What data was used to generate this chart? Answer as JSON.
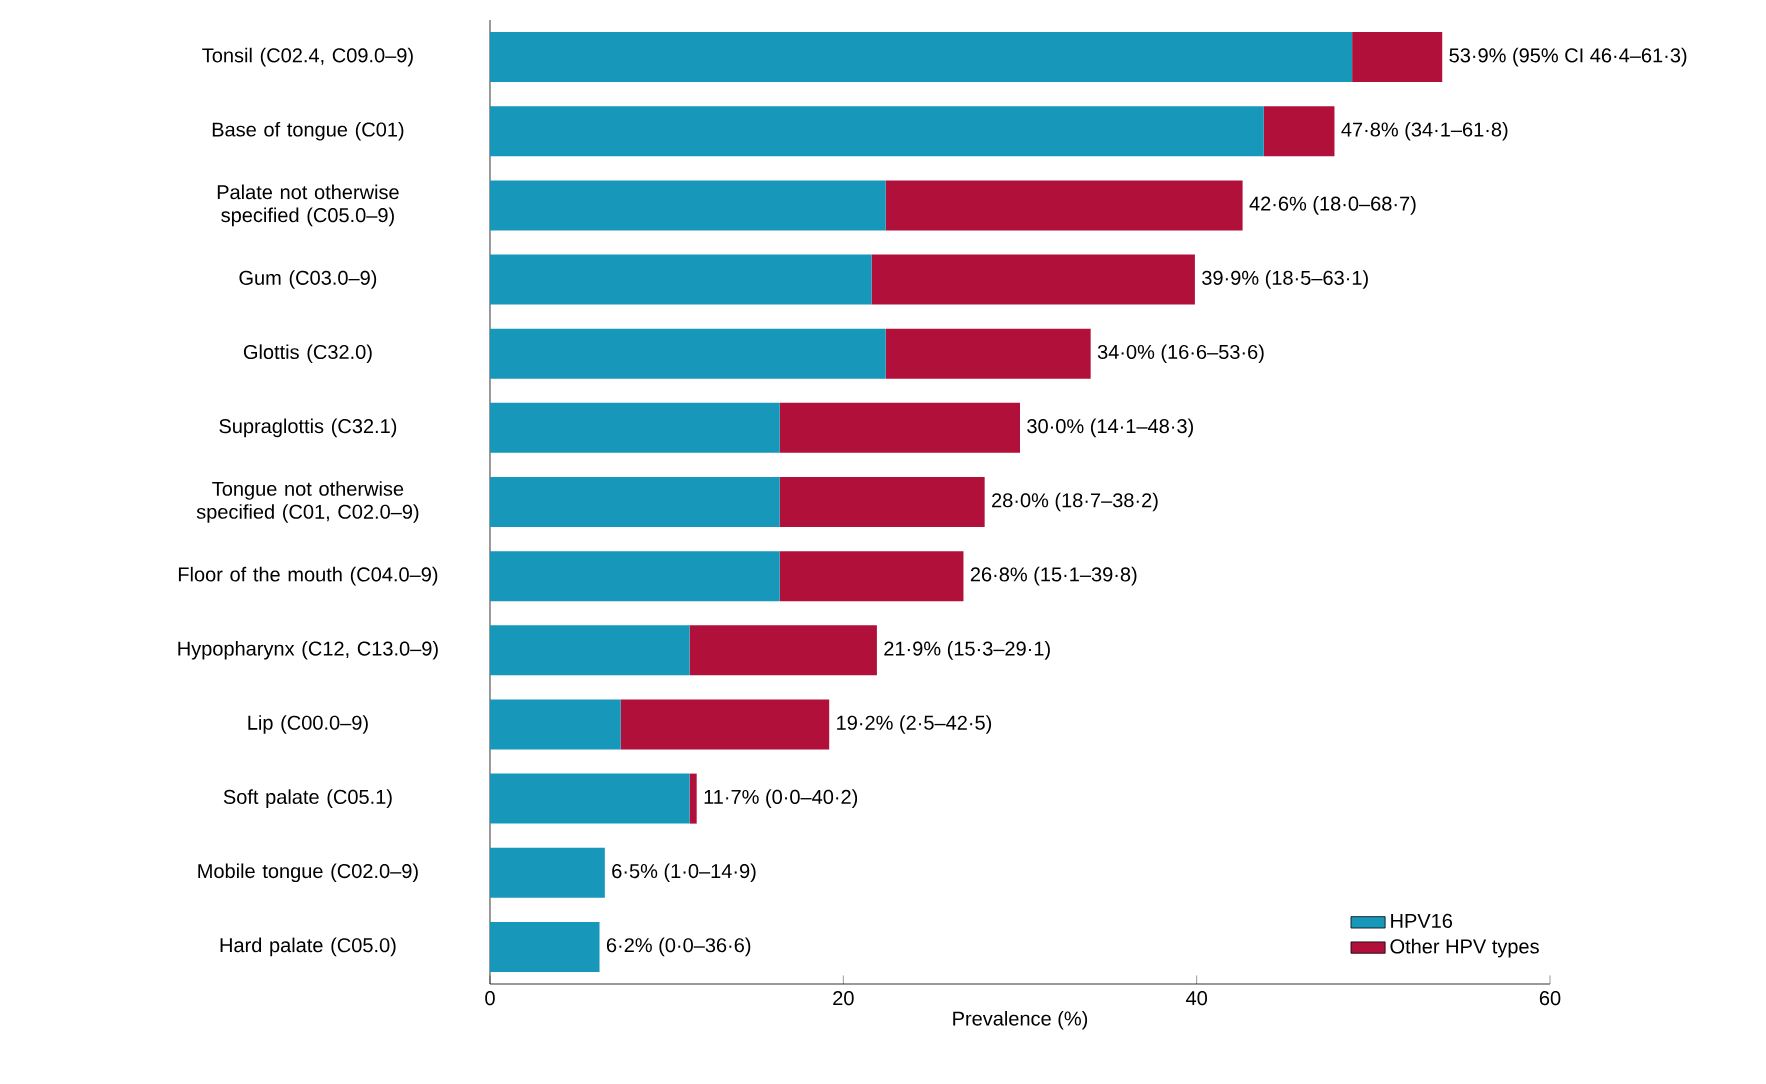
{
  "chart_data": {
    "type": "bar",
    "orientation": "horizontal",
    "stacked": true,
    "xlabel": "Prevalence (%)",
    "categories": [
      "Tonsil (C02.4, C09.0–9)",
      "Base of tongue (C01)",
      "Palate not otherwise specified (C05.0–9)",
      "Gum (C03.0–9)",
      "Glottis (C32.0)",
      "Supraglottis (C32.1)",
      "Tongue not otherwise specified (C01, C02.0–9)",
      "Floor of the mouth (C04.0–9)",
      "Hypopharynx (C12, C13.0–9)",
      "Lip (C00.0–9)",
      "Soft palate (C05.1)",
      "Mobile tongue (C02.0–9)",
      "Hard palate (C05.0)"
    ],
    "series": [
      {
        "name": "HPV16",
        "color": "#1797b9",
        "values": [
          48.8,
          43.8,
          22.4,
          21.6,
          22.4,
          16.4,
          16.4,
          16.4,
          11.3,
          7.4,
          11.3,
          6.5,
          6.2
        ]
      },
      {
        "name": "Other HPV types",
        "color": "#b0103a",
        "values": [
          5.1,
          4.0,
          20.2,
          18.3,
          11.6,
          13.6,
          11.6,
          10.4,
          10.6,
          11.8,
          0.4,
          0,
          0
        ]
      }
    ],
    "totals": [
      "53·9% (95% CI 46·4–61·3)",
      "47·8% (34·1–61·8)",
      "42·6% (18·0–68·7)",
      "39·9% (18·5–63·1)",
      "34·0% (16·6–53·6)",
      "30·0% (14·1–48·3)",
      "28·0% (18·7–38·2)",
      "26·8% (15·1–39·8)",
      "21·9% (15·3–29·1)",
      "19·2% (2·5–42·5)",
      "11·7% (0·0–40·2)",
      "6·5% (1·0–14·9)",
      "6·2% (0·0–36·6)"
    ],
    "xlim": [
      0,
      60
    ],
    "xticks": [
      0,
      20,
      40,
      60
    ],
    "legend": "bottom right",
    "grid": false
  }
}
